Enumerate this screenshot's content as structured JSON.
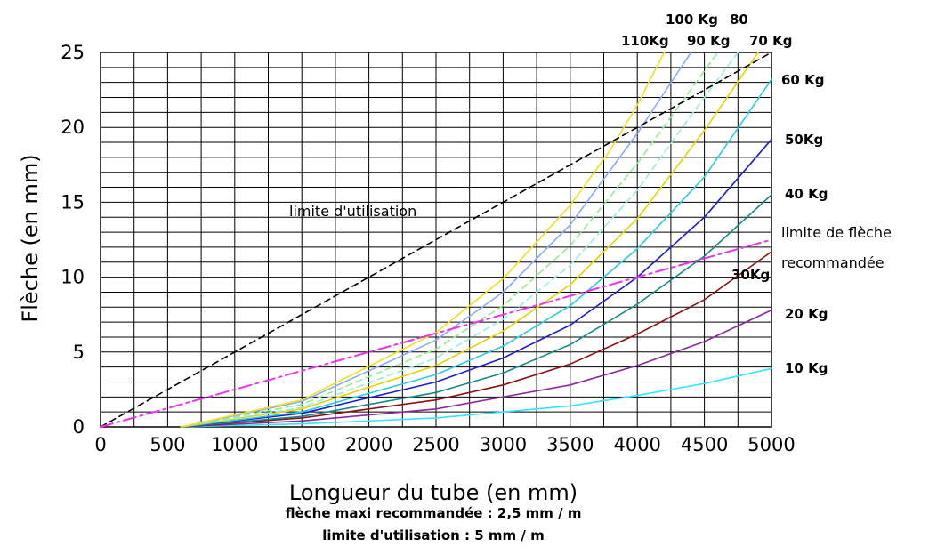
{
  "chart_data": {
    "type": "line",
    "xlabel": "Longueur du tube (en mm)",
    "ylabel": "Flèche (en mm)",
    "xlim": [
      0,
      5000
    ],
    "ylim": [
      0,
      25
    ],
    "x_ticks": [
      "0",
      "500",
      "1000",
      "1500",
      "2000",
      "2500",
      "3000",
      "3500",
      "4000",
      "4500",
      "5000"
    ],
    "y_ticks": [
      "0",
      "5",
      "10",
      "15",
      "20",
      "25"
    ],
    "grid": true,
    "series": [
      {
        "name": "10 Kg",
        "color": "#33e6ff",
        "dash": "solid",
        "x": [
          600,
          1500,
          2500,
          3500,
          4000,
          4500,
          5000
        ],
        "y": [
          0,
          0.2,
          0.6,
          1.4,
          2.1,
          2.9,
          3.9
        ]
      },
      {
        "name": "20 Kg",
        "color": "#8a2a9a",
        "dash": "solid",
        "x": [
          600,
          1500,
          2500,
          3500,
          4000,
          4500,
          5000
        ],
        "y": [
          0,
          0.4,
          1.2,
          2.8,
          4.1,
          5.7,
          7.8
        ]
      },
      {
        "name": "30Kg",
        "color": "#8b1010",
        "dash": "solid",
        "x": [
          600,
          1500,
          2500,
          3000,
          3500,
          4000,
          4500,
          5000
        ],
        "y": [
          0,
          0.6,
          1.8,
          2.8,
          4.2,
          6.2,
          8.5,
          11.7
        ]
      },
      {
        "name": "40 Kg",
        "color": "#178888",
        "dash": "solid",
        "x": [
          600,
          1500,
          2500,
          3000,
          3500,
          4000,
          4500,
          5000
        ],
        "y": [
          0,
          0.7,
          2.3,
          3.6,
          5.5,
          8.2,
          11.4,
          15.5
        ]
      },
      {
        "name": "50Kg",
        "color": "#1c1ccf",
        "dash": "solid",
        "x": [
          600,
          1500,
          2500,
          3000,
          3500,
          4000,
          4500,
          5000
        ],
        "y": [
          0,
          0.9,
          3.0,
          4.6,
          6.8,
          10.0,
          14.0,
          19.2
        ]
      },
      {
        "name": "60 Kg",
        "color": "#2ccbe0",
        "dash": "solid",
        "x": [
          600,
          1500,
          2500,
          3000,
          3500,
          4000,
          4500,
          5000
        ],
        "y": [
          0,
          1.0,
          3.5,
          5.4,
          8.1,
          11.9,
          16.7,
          23.2
        ]
      },
      {
        "name": "70 Kg",
        "color": "#e8d200",
        "dash": "solid",
        "x": [
          600,
          1500,
          2500,
          3000,
          3500,
          4000,
          4500,
          4900
        ],
        "y": [
          0,
          1.2,
          4.1,
          6.4,
          9.5,
          13.9,
          19.8,
          25.0
        ]
      },
      {
        "name": "80",
        "color": "#99eedd",
        "dash": "dashed",
        "x": [
          600,
          1500,
          2500,
          3000,
          3500,
          4000,
          4400,
          4750
        ],
        "y": [
          0,
          1.3,
          4.6,
          7.2,
          10.8,
          15.8,
          20.8,
          25.0
        ]
      },
      {
        "name": "90 Kg",
        "color": "#90ee90",
        "dash": "dashed",
        "x": [
          600,
          1500,
          2500,
          3000,
          3500,
          4000,
          4300,
          4600
        ],
        "y": [
          0,
          1.5,
          5.2,
          8.1,
          12.1,
          17.6,
          21.3,
          25.0
        ]
      },
      {
        "name": "100 Kg",
        "color": "#88aaff",
        "dash": "solid",
        "x": [
          600,
          1500,
          2500,
          3000,
          3500,
          4000,
          4400
        ],
        "y": [
          0,
          1.7,
          5.8,
          9.0,
          13.5,
          19.6,
          25.0
        ]
      },
      {
        "name": "110Kg",
        "color": "#f0e020",
        "dash": "solid",
        "x": [
          600,
          1500,
          2500,
          3000,
          3500,
          3800,
          4000,
          4200
        ],
        "y": [
          0,
          1.8,
          6.3,
          9.9,
          14.8,
          18.5,
          21.5,
          25.0
        ]
      },
      {
        "name": "limite d'utilisation",
        "color": "#000000",
        "dash": "dashed",
        "x": [
          0,
          5000
        ],
        "y": [
          0,
          25
        ]
      },
      {
        "name": "limite de flèche recommandée",
        "color": "#ee33ee",
        "dash": "dashdot",
        "x": [
          0,
          5000
        ],
        "y": [
          0,
          12.5
        ]
      }
    ],
    "annotations": {
      "limite_utilisation": "limite d'utilisation",
      "limite_fleche_line1": "limite de flèche",
      "limite_fleche_line2": "recommandée"
    },
    "series_labels": {
      "kg100": "100 Kg",
      "kg80": "80",
      "kg110": "110Kg",
      "kg90": "90 Kg",
      "kg70": "70 Kg",
      "kg60": "60 Kg",
      "kg50": "50Kg",
      "kg40": "40 Kg",
      "kg30": "30Kg",
      "kg20": "20 Kg",
      "kg10": "10 Kg"
    },
    "footnotes": {
      "line1": "flèche maxi recommandée : 2,5 mm / m",
      "line2": "limite d'utilisation : 5 mm / m"
    }
  }
}
